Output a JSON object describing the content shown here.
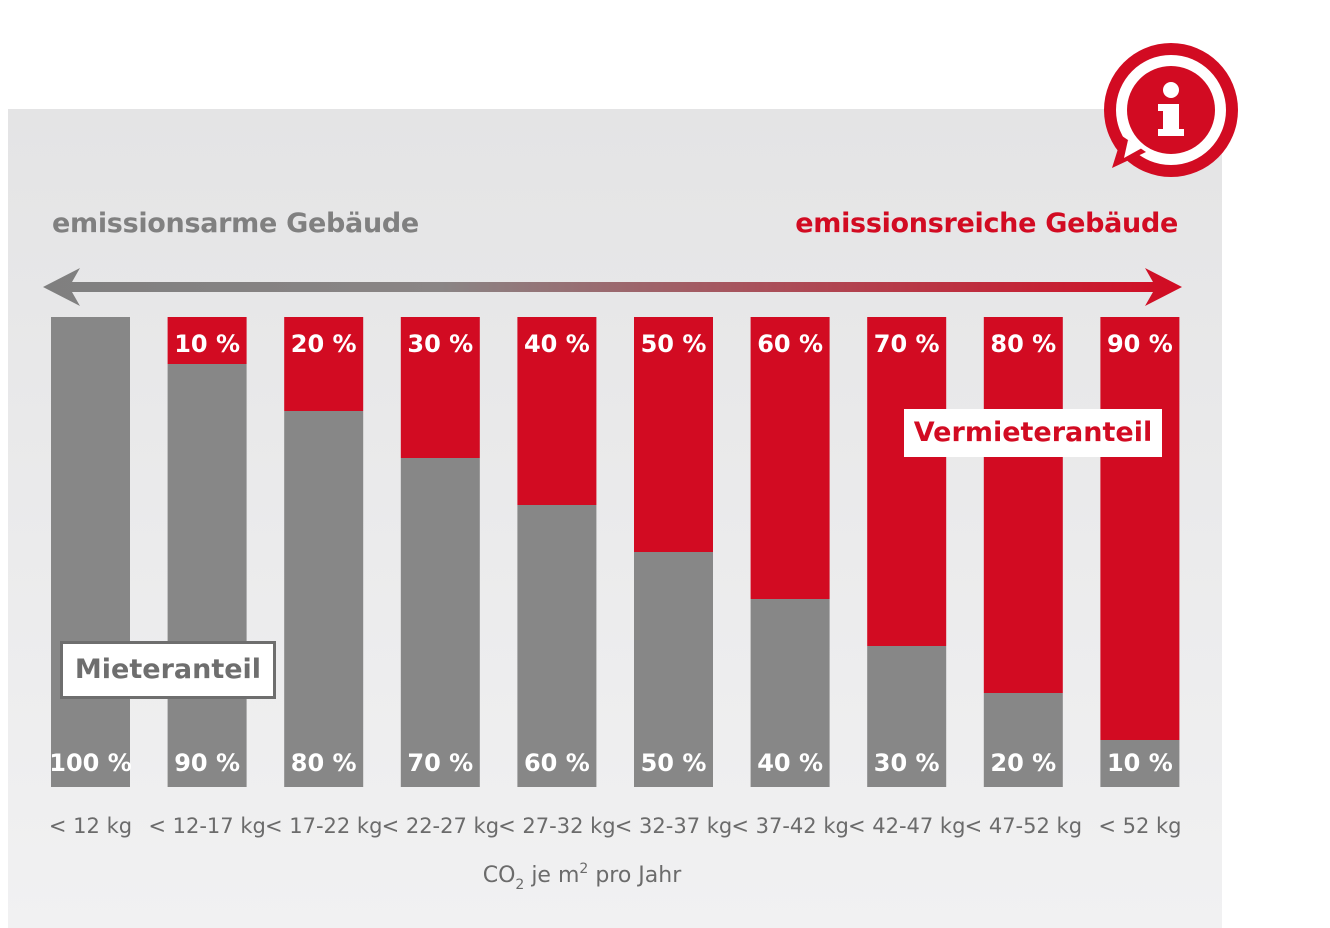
{
  "header": {
    "left_label": "emissionsarme Gebäude",
    "right_label": "emissionsreiche Gebäude"
  },
  "legend": {
    "tenant": "Mieteranteil",
    "landlord": "Vermieteranteil"
  },
  "colors": {
    "tenant": "#878787",
    "landlord": "#d20b22",
    "arrow_left": "#7f7f7f",
    "arrow_right": "#d20b22"
  },
  "icons": [
    "info-speech-bubble-icon",
    "double-headed-arrow-icon"
  ],
  "chart_data": {
    "type": "bar",
    "stacked": true,
    "percent_suffix": " %",
    "categories": [
      "< 12 kg",
      "< 12-17 kg",
      "< 17-22 kg",
      "< 22-27 kg",
      "< 27-32 kg",
      "< 32-37 kg",
      "< 37-42 kg",
      "< 42-47 kg",
      "< 47-52 kg",
      "< 52 kg"
    ],
    "series": [
      {
        "name": "Mieteranteil",
        "values": [
          100,
          90,
          80,
          70,
          60,
          50,
          40,
          30,
          20,
          10
        ]
      },
      {
        "name": "Vermieteranteil",
        "values": [
          0,
          10,
          20,
          30,
          40,
          50,
          60,
          70,
          80,
          90
        ]
      }
    ],
    "xlabel_parts": [
      "CO",
      "2",
      " je m",
      "2",
      " pro Jahr"
    ],
    "ylim": [
      0,
      100
    ]
  }
}
